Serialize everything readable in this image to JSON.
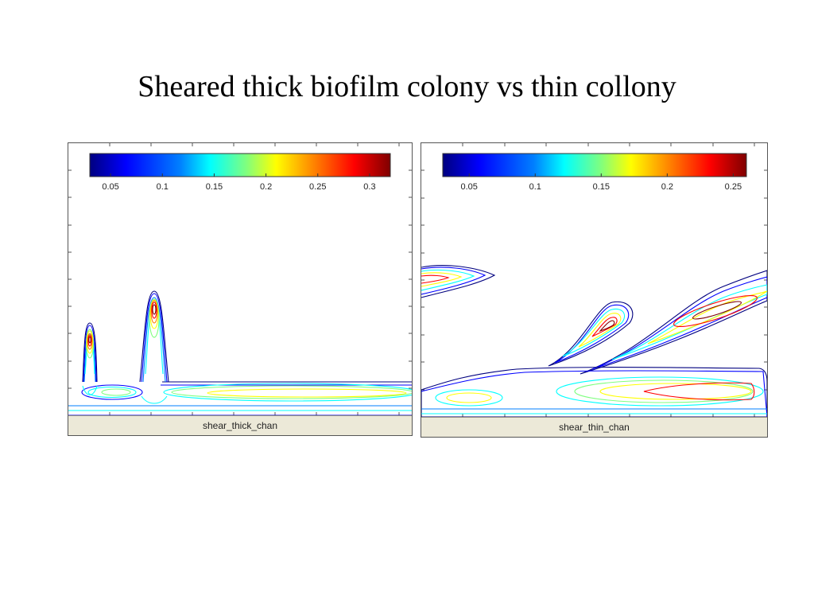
{
  "slide": {
    "title": "Sheared thick biofilm colony vs thin collony"
  },
  "colormap": [
    "#00007f",
    "#0000ff",
    "#007fff",
    "#00ffff",
    "#7fff7f",
    "#ffff00",
    "#ff7f00",
    "#ff0000",
    "#7f0000"
  ],
  "chart_data": [
    {
      "type": "contour",
      "caption": "shear_thick_chan",
      "colorbar": {
        "range": [
          0.03,
          0.32
        ],
        "ticks": [
          "0.05",
          "0.1",
          "0.15",
          "0.2",
          "0.25",
          "0.3"
        ],
        "tick_values": [
          0.05,
          0.1,
          0.15,
          0.2,
          0.25,
          0.3
        ]
      },
      "features": [
        {
          "name": "colony-left",
          "kind": "peak",
          "x": 0.06,
          "y": 0.42,
          "max": 0.3
        },
        {
          "name": "colony-right",
          "kind": "peak",
          "x": 0.25,
          "y": 0.55,
          "max": 0.3
        },
        {
          "name": "channel-band-left",
          "kind": "band",
          "x_range": [
            0.0,
            0.16
          ],
          "y": 0.12,
          "max": 0.12
        },
        {
          "name": "channel-band-right",
          "kind": "band",
          "x_range": [
            0.33,
            1.0
          ],
          "y": 0.12,
          "max": 0.2
        }
      ]
    },
    {
      "type": "contour",
      "caption": "shear_thin_chan",
      "colorbar": {
        "range": [
          0.03,
          0.26
        ],
        "ticks": [
          "0.05",
          "0.1",
          "0.15",
          "0.2",
          "0.25"
        ],
        "tick_values": [
          0.05,
          0.1,
          0.15,
          0.2,
          0.25
        ]
      },
      "features": [
        {
          "name": "streak-upper-left",
          "kind": "streak",
          "x_range": [
            0.0,
            0.21
          ],
          "y": 0.52,
          "max": 0.25
        },
        {
          "name": "streak-middle",
          "kind": "streak",
          "x_range": [
            0.36,
            0.55
          ],
          "y": 0.38,
          "max": 0.25
        },
        {
          "name": "streak-upper-right",
          "kind": "streak",
          "x_range": [
            0.62,
            1.0
          ],
          "y": 0.42,
          "max": 0.25
        },
        {
          "name": "channel-band",
          "kind": "band",
          "x_range": [
            0.0,
            1.0
          ],
          "y": 0.12,
          "max": 0.25
        }
      ]
    }
  ]
}
